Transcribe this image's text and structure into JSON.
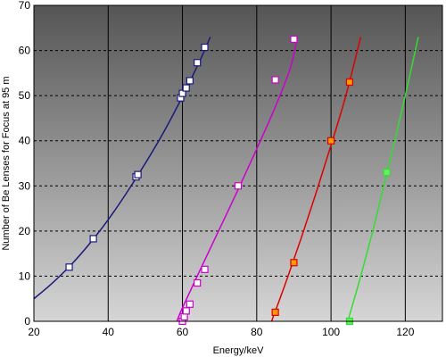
{
  "chart_data": {
    "type": "scatter",
    "xlabel": "Energy/keV",
    "ylabel": "Number of Be Lenses for Focus at 95 m",
    "xlim": [
      20,
      130
    ],
    "ylim": [
      0,
      70
    ],
    "x_ticks": [
      20,
      40,
      60,
      80,
      100,
      120
    ],
    "y_ticks": [
      0,
      10,
      20,
      30,
      40,
      50,
      60,
      70
    ],
    "grid": {
      "vertical": "solid",
      "horizontal": "dashed"
    },
    "background": {
      "gradient_top": "#555555",
      "gradient_bottom": "#d6d6d6"
    },
    "series": [
      {
        "color": "#1a1a7a",
        "marker_fill": "#ffffff",
        "points": [
          [
            29.5,
            12
          ],
          [
            36,
            18.3
          ],
          [
            47.5,
            32
          ],
          [
            48,
            32.5
          ],
          [
            59.5,
            49.5
          ],
          [
            60,
            50.5
          ],
          [
            61,
            51.7
          ],
          [
            62,
            53.3
          ],
          [
            64,
            57.3
          ],
          [
            66,
            60.7
          ]
        ],
        "curve": [
          [
            20,
            5
          ],
          [
            25,
            8.5
          ],
          [
            30,
            12.5
          ],
          [
            35,
            17.2
          ],
          [
            40,
            22.5
          ],
          [
            45,
            28.5
          ],
          [
            50,
            35
          ],
          [
            55,
            42
          ],
          [
            60,
            49.8
          ],
          [
            65,
            58.3
          ],
          [
            67.5,
            63
          ]
        ]
      },
      {
        "color": "#cc00cc",
        "marker_fill": "#ffffff",
        "points": [
          [
            60,
            0
          ],
          [
            60.5,
            1
          ],
          [
            61,
            2.3
          ],
          [
            62,
            3.8
          ],
          [
            64,
            8.5
          ],
          [
            66,
            11.5
          ],
          [
            75,
            30
          ],
          [
            85,
            53.5
          ],
          [
            90,
            62.5
          ]
        ],
        "curve": [
          [
            58.5,
            0
          ],
          [
            60,
            3
          ],
          [
            65,
            11.8
          ],
          [
            70,
            20.5
          ],
          [
            75,
            29.2
          ],
          [
            80,
            38.2
          ],
          [
            85,
            47.5
          ],
          [
            89,
            56
          ],
          [
            91,
            63
          ]
        ]
      },
      {
        "color": "#dd0000",
        "marker_fill": "#ff9900",
        "points": [
          [
            85,
            2
          ],
          [
            90,
            13
          ],
          [
            100,
            40
          ],
          [
            105,
            53
          ]
        ],
        "curve": [
          [
            84,
            0
          ],
          [
            88,
            9
          ],
          [
            92,
            18.5
          ],
          [
            96,
            28.5
          ],
          [
            100,
            39
          ],
          [
            104,
            50
          ],
          [
            108,
            63
          ]
        ]
      },
      {
        "color": "#33dd33",
        "marker_fill": "#66ee66",
        "points": [
          [
            105,
            0
          ],
          [
            115,
            33
          ]
        ],
        "curve": [
          [
            104.5,
            0
          ],
          [
            108,
            10
          ],
          [
            112,
            22.5
          ],
          [
            116,
            36
          ],
          [
            120,
            50
          ],
          [
            123.5,
            63
          ]
        ]
      }
    ]
  }
}
